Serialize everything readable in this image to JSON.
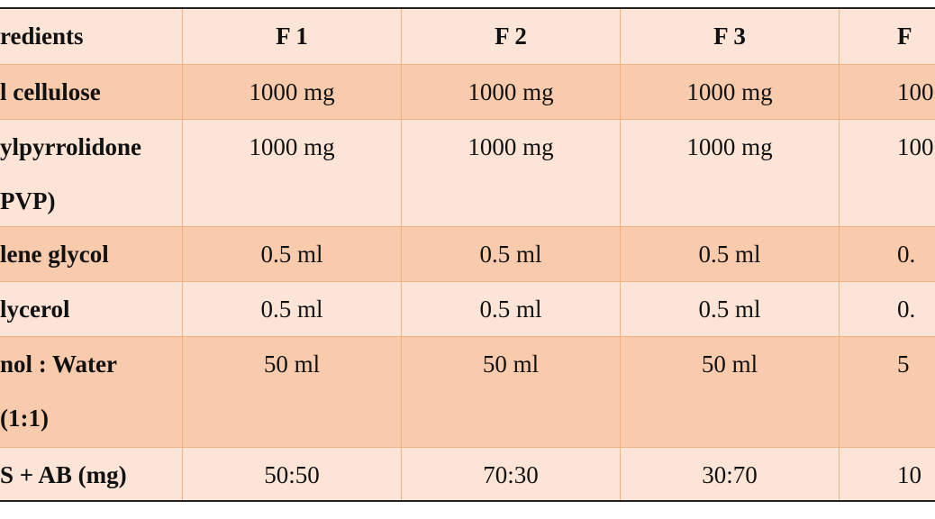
{
  "table": {
    "header": [
      "redients",
      "F 1",
      "F 2",
      "F 3",
      "F"
    ],
    "rows": [
      {
        "label": [
          "l cellulose"
        ],
        "values": [
          "1000 mg",
          "1000 mg",
          "1000 mg",
          "100"
        ]
      },
      {
        "label": [
          "ylpyrrolidone",
          "PVP)"
        ],
        "values": [
          "1000 mg",
          "1000 mg",
          "1000 mg",
          "100"
        ]
      },
      {
        "label": [
          "lene glycol"
        ],
        "values": [
          "0.5 ml",
          "0.5 ml",
          "0.5 ml",
          "0."
        ]
      },
      {
        "label": [
          "lycerol"
        ],
        "values": [
          "0.5 ml",
          "0.5 ml",
          "0.5 ml",
          "0."
        ]
      },
      {
        "label": [
          "nol : Water",
          "(1:1)"
        ],
        "values": [
          "50 ml",
          "50 ml",
          "50 ml",
          "5"
        ]
      },
      {
        "label": [
          "S + AB (mg)"
        ],
        "values": [
          "50:50",
          "70:30",
          "30:70",
          "10"
        ]
      }
    ]
  }
}
